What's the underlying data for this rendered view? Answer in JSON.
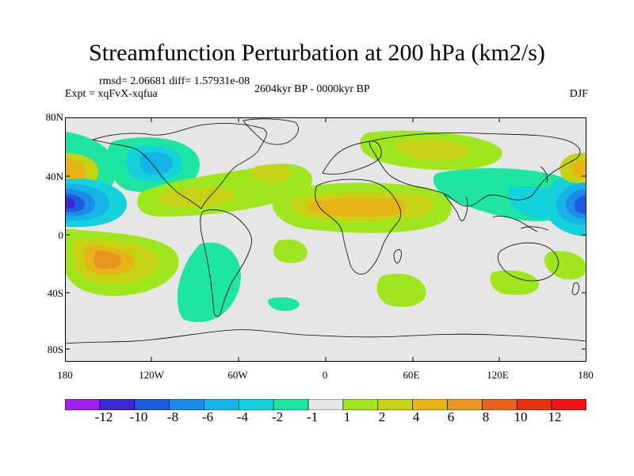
{
  "title": "Streamfunction Perturbation at 200 hPa (km2/s)",
  "stats": "rmsd= 2.06681 diff= 1.57931e-08",
  "experiment": "Expt = xqFvX-xqfua",
  "period": "2604kyr BP - 0000kyr BP",
  "season": "DJF",
  "lat_ticks": [
    "80N",
    "40N",
    "0",
    "40S",
    "80S"
  ],
  "lon_ticks": [
    "180",
    "120W",
    "60W",
    "0",
    "60E",
    "120E",
    "180"
  ],
  "colorbar": {
    "labels": [
      "-12",
      "-10",
      "-8",
      "-6",
      "-4",
      "-2",
      "-1",
      "1",
      "2",
      "4",
      "6",
      "8",
      "10",
      "12"
    ],
    "colors": [
      "#a020f0",
      "#3c28d6",
      "#1e5adc",
      "#1e8ce6",
      "#14b4e6",
      "#14d2dc",
      "#1ee6a0",
      "#e6e6e6",
      "#a0e61e",
      "#c8d214",
      "#e6b414",
      "#e6961e",
      "#e6641e",
      "#e63214",
      "#f01414"
    ]
  },
  "map": {
    "colors": {
      "ocean_neutral": "#e6e6e6",
      "coastline": "#000000"
    }
  }
}
